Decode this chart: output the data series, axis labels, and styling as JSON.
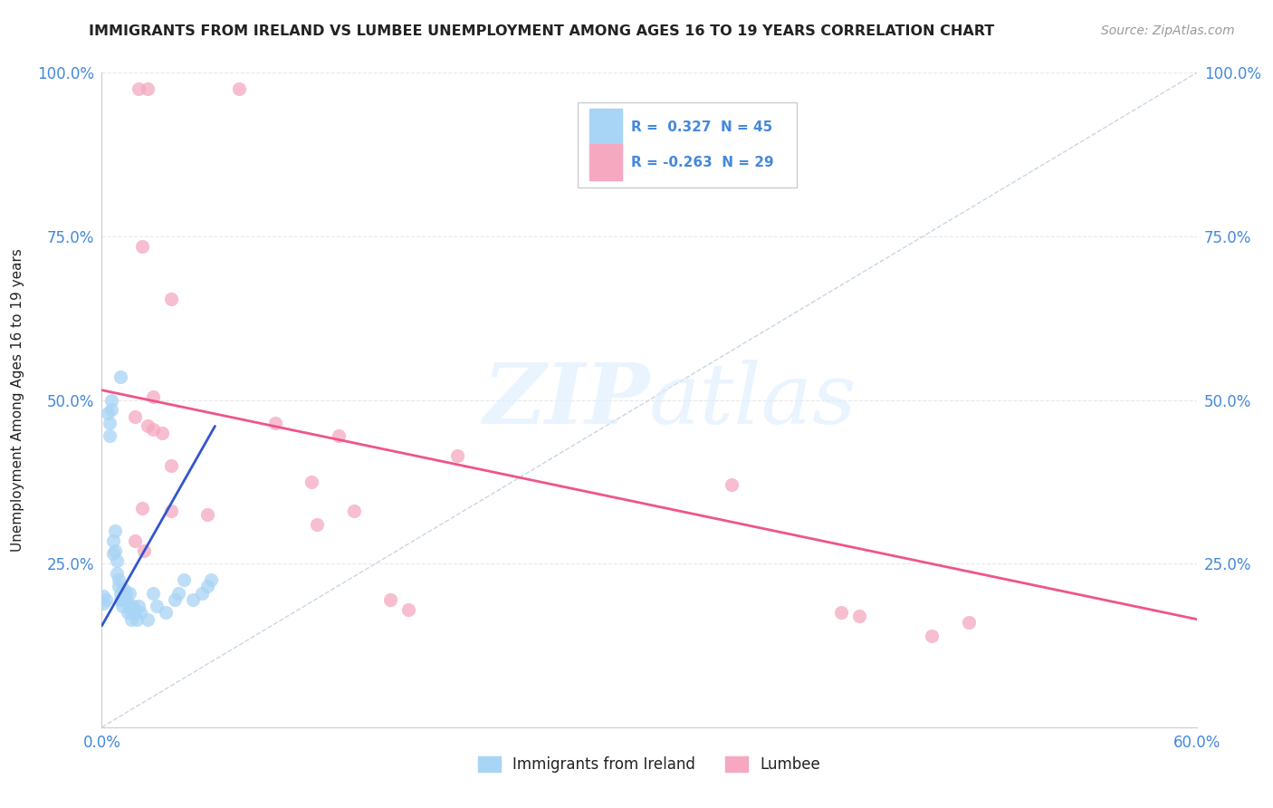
{
  "title": "IMMIGRANTS FROM IRELAND VS LUMBEE UNEMPLOYMENT AMONG AGES 16 TO 19 YEARS CORRELATION CHART",
  "source_text": "Source: ZipAtlas.com",
  "legend_blue_r": "R =  0.327",
  "legend_blue_n": "N = 45",
  "legend_pink_r": "R = -0.263",
  "legend_pink_n": "N = 29",
  "blue_color": "#A8D4F5",
  "pink_color": "#F5A8C0",
  "blue_line_color": "#3355CC",
  "pink_line_color": "#EE5588",
  "blue_scatter": [
    [
      0.001,
      0.2
    ],
    [
      0.001,
      0.19
    ],
    [
      0.002,
      0.195
    ],
    [
      0.003,
      0.48
    ],
    [
      0.004,
      0.465
    ],
    [
      0.004,
      0.445
    ],
    [
      0.005,
      0.5
    ],
    [
      0.005,
      0.485
    ],
    [
      0.006,
      0.285
    ],
    [
      0.006,
      0.265
    ],
    [
      0.007,
      0.3
    ],
    [
      0.007,
      0.27
    ],
    [
      0.008,
      0.255
    ],
    [
      0.008,
      0.235
    ],
    [
      0.009,
      0.225
    ],
    [
      0.009,
      0.215
    ],
    [
      0.01,
      0.205
    ],
    [
      0.01,
      0.195
    ],
    [
      0.011,
      0.185
    ],
    [
      0.011,
      0.195
    ],
    [
      0.012,
      0.21
    ],
    [
      0.013,
      0.205
    ],
    [
      0.013,
      0.195
    ],
    [
      0.014,
      0.175
    ],
    [
      0.015,
      0.185
    ],
    [
      0.015,
      0.205
    ],
    [
      0.016,
      0.175
    ],
    [
      0.016,
      0.165
    ],
    [
      0.017,
      0.185
    ],
    [
      0.018,
      0.175
    ],
    [
      0.019,
      0.165
    ],
    [
      0.02,
      0.185
    ],
    [
      0.021,
      0.175
    ],
    [
      0.025,
      0.165
    ],
    [
      0.028,
      0.205
    ],
    [
      0.03,
      0.185
    ],
    [
      0.035,
      0.175
    ],
    [
      0.04,
      0.195
    ],
    [
      0.042,
      0.205
    ],
    [
      0.045,
      0.225
    ],
    [
      0.05,
      0.195
    ],
    [
      0.055,
      0.205
    ],
    [
      0.058,
      0.215
    ],
    [
      0.06,
      0.225
    ],
    [
      0.01,
      0.535
    ]
  ],
  "pink_scatter": [
    [
      0.02,
      0.975
    ],
    [
      0.025,
      0.975
    ],
    [
      0.075,
      0.975
    ],
    [
      0.022,
      0.735
    ],
    [
      0.038,
      0.655
    ],
    [
      0.028,
      0.505
    ],
    [
      0.095,
      0.465
    ],
    [
      0.13,
      0.445
    ],
    [
      0.195,
      0.415
    ],
    [
      0.018,
      0.475
    ],
    [
      0.025,
      0.46
    ],
    [
      0.028,
      0.455
    ],
    [
      0.033,
      0.45
    ],
    [
      0.038,
      0.4
    ],
    [
      0.115,
      0.375
    ],
    [
      0.022,
      0.335
    ],
    [
      0.038,
      0.33
    ],
    [
      0.058,
      0.325
    ],
    [
      0.118,
      0.31
    ],
    [
      0.138,
      0.33
    ],
    [
      0.018,
      0.285
    ],
    [
      0.023,
      0.27
    ],
    [
      0.158,
      0.195
    ],
    [
      0.168,
      0.18
    ],
    [
      0.345,
      0.37
    ],
    [
      0.405,
      0.175
    ],
    [
      0.415,
      0.17
    ],
    [
      0.455,
      0.14
    ],
    [
      0.475,
      0.16
    ]
  ],
  "xlim": [
    0.0,
    0.6
  ],
  "ylim": [
    0.0,
    1.0
  ],
  "blue_trendline_x": [
    0.0,
    0.062
  ],
  "blue_trendline_y": [
    0.155,
    0.46
  ],
  "pink_trendline_x": [
    0.0,
    0.6
  ],
  "pink_trendline_y": [
    0.515,
    0.165
  ],
  "ref_line_x": [
    0.0,
    0.6
  ],
  "ref_line_y": [
    0.0,
    1.0
  ],
  "ytick_positions": [
    0.0,
    0.25,
    0.5,
    0.75,
    1.0
  ],
  "ytick_labels_left": [
    "",
    "25.0%",
    "50.0%",
    "75.0%",
    "100.0%"
  ],
  "ytick_labels_right": [
    "",
    "25.0%",
    "50.0%",
    "75.0%",
    "100.0%"
  ],
  "xtick_positions": [
    0.0,
    0.1,
    0.2,
    0.3,
    0.4,
    0.5,
    0.6
  ],
  "xtick_labels": [
    "0.0%",
    "",
    "",
    "",
    "",
    "",
    "60.0%"
  ],
  "watermark_zip": "ZIP",
  "watermark_atlas": "atlas",
  "background_color": "#FFFFFF",
  "grid_color": "#E8E8E8",
  "title_color": "#222222",
  "axis_label_color": "#4488DD",
  "legend_text_color": "#4488DD",
  "source_color": "#999999",
  "ylabel_text": "Unemployment Among Ages 16 to 19 years"
}
